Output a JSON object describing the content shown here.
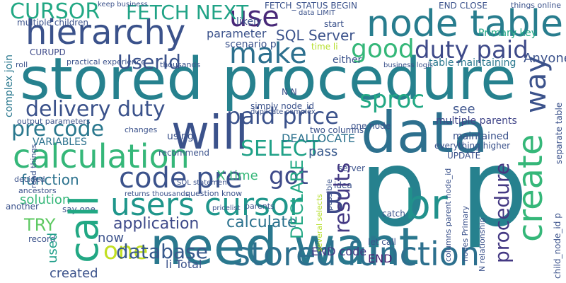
{
  "words": [
    {
      "text": "stored procedure",
      "color": "#26818e"
    },
    {
      "text": "p p",
      "color": "#26818e"
    },
    {
      "text": "need want",
      "color": "#2a788e"
    },
    {
      "text": "data",
      "color": "#2d708e"
    },
    {
      "text": "will",
      "color": "#3b528b"
    },
    {
      "text": "hierarchy",
      "color": "#3b528b"
    },
    {
      "text": "node table",
      "color": "#287d8e"
    },
    {
      "text": "calculation",
      "color": "#35b779"
    },
    {
      "text": "users cursor",
      "color": "#1f968b"
    },
    {
      "text": "stored function",
      "color": "#2d708e"
    },
    {
      "text": "code pre",
      "color": "#3b528b"
    },
    {
      "text": "make",
      "color": "#2d708e"
    },
    {
      "text": "good",
      "color": "#35b779"
    },
    {
      "text": "duty paid",
      "color": "#3e4a89"
    },
    {
      "text": "sproc",
      "color": "#22a884"
    },
    {
      "text": "paid price",
      "color": "#3b528b"
    },
    {
      "text": "delivery duty",
      "color": "#3b528b"
    },
    {
      "text": "pre code",
      "color": "#2a788e"
    },
    {
      "text": "use",
      "color": "#482878"
    },
    {
      "text": "CURSOR",
      "color": "#22a884"
    },
    {
      "text": "FETCH NEXT",
      "color": "#20a386"
    },
    {
      "text": "call",
      "color": "#22a884"
    },
    {
      "text": "one",
      "color": "#c2df23"
    },
    {
      "text": "B",
      "color": "#3e4a89"
    },
    {
      "text": "br",
      "color": "#21918c"
    },
    {
      "text": "results",
      "color": "#443983"
    },
    {
      "text": "create",
      "color": "#35b779"
    },
    {
      "text": "way",
      "color": "#3b528b"
    },
    {
      "text": "procedure",
      "color": "#443983"
    },
    {
      "text": "got",
      "color": "#3e4a89"
    },
    {
      "text": "SELECT",
      "color": "#1fa187"
    },
    {
      "text": "database",
      "color": "#38598c"
    },
    {
      "text": "UserId",
      "color": "#3b528b"
    },
    {
      "text": "SQL Server",
      "color": "#3b528b"
    },
    {
      "text": "parameter",
      "color": "#3b528b"
    },
    {
      "text": "function",
      "color": "#2c728e"
    },
    {
      "text": "application",
      "color": "#3e4a89"
    },
    {
      "text": "calculate",
      "color": "#2c728e"
    },
    {
      "text": "DECLARE",
      "color": "#22a884"
    },
    {
      "text": "TRY",
      "color": "#5ec962"
    },
    {
      "text": "used",
      "color": "#1f9e89"
    },
    {
      "text": "solution",
      "color": "#35b779"
    },
    {
      "text": "now",
      "color": "#3b528b"
    },
    {
      "text": "created",
      "color": "#3b528b"
    },
    {
      "text": "li Total",
      "color": "#3b528b"
    },
    {
      "text": "END code",
      "color": "#443983"
    },
    {
      "text": "END",
      "color": "#481f70"
    },
    {
      "text": "DEALLOCATE",
      "color": "#2c728e"
    },
    {
      "text": "pass",
      "color": "#38598c"
    },
    {
      "text": "see",
      "color": "#3b528b"
    },
    {
      "text": "maintained",
      "color": "#3b528b"
    },
    {
      "text": "multiple parents",
      "color": "#404588"
    },
    {
      "text": "Primary key",
      "color": "#22a884"
    },
    {
      "text": "Anyone",
      "color": "#3b528b"
    },
    {
      "text": "table maintaining",
      "color": "#2a788e"
    },
    {
      "text": "likely",
      "color": "#3b528b"
    },
    {
      "text": "scenario p",
      "color": "#3b528b"
    },
    {
      "text": "time li",
      "color": "#b5de2b"
    },
    {
      "text": "either",
      "color": "#3b528b"
    },
    {
      "text": "start",
      "color": "#3b528b"
    },
    {
      "text": "multiple children",
      "color": "#3b528b"
    },
    {
      "text": "CURUPD",
      "color": "#3e4a89"
    },
    {
      "text": "VARIABLES",
      "color": "#2c728e"
    },
    {
      "text": "X time",
      "color": "#35b779"
    },
    {
      "text": "using",
      "color": "#3b528b"
    },
    {
      "text": "recommend",
      "color": "#3b528b"
    },
    {
      "text": "complex join",
      "color": "#2a788e"
    },
    {
      "text": "two columns",
      "color": "#3b528b"
    },
    {
      "text": "one node",
      "color": "#3b528b"
    },
    {
      "text": "N N",
      "color": "#3b528b"
    },
    {
      "text": "simply node_id",
      "color": "#3b528b"
    },
    {
      "text": "FETCH_STATUS BEGIN",
      "color": "#3b528b"
    },
    {
      "text": "END CLOSE",
      "color": "#3b528b"
    },
    {
      "text": "data LIMIT",
      "color": "#3b528b"
    },
    {
      "text": "things online",
      "color": "#3b528b"
    },
    {
      "text": "practical experience",
      "color": "#3b528b"
    },
    {
      "text": "thousands",
      "color": "#3b528b"
    },
    {
      "text": "roll",
      "color": "#3b528b"
    },
    {
      "text": "business logic",
      "color": "#3b528b"
    },
    {
      "text": "output parameters",
      "color": "#3b528b"
    },
    {
      "text": "ancestors",
      "color": "#3b528b"
    },
    {
      "text": "another",
      "color": "#3b528b"
    },
    {
      "text": "say one",
      "color": "#3b528b"
    },
    {
      "text": "record",
      "color": "#3b528b"
    },
    {
      "text": "question know",
      "color": "#3b528b"
    },
    {
      "text": "SQL statement",
      "color": "#3b528b"
    },
    {
      "text": "returns thousands",
      "color": "#3b528b"
    },
    {
      "text": "pricelist",
      "color": "#3b528b"
    },
    {
      "text": "idea",
      "color": "#3b528b"
    },
    {
      "text": "server",
      "color": "#3b528b"
    },
    {
      "text": "let call",
      "color": "#3b528b"
    },
    {
      "text": "catch",
      "color": "#3b528b"
    },
    {
      "text": "UPDATE",
      "color": "#3b528b"
    },
    {
      "text": "everything higher",
      "color": "#3b528b"
    },
    {
      "text": "columns parent node_id",
      "color": "#3b528b"
    },
    {
      "text": "nodes Primary",
      "color": "#3b528b"
    },
    {
      "text": "N relationship",
      "color": "#3b528b"
    },
    {
      "text": "child_node_id p",
      "color": "#3b528b"
    },
    {
      "text": "separate table",
      "color": "#3b528b"
    },
    {
      "text": "read things",
      "color": "#3b528b"
    },
    {
      "text": "changes",
      "color": "#3b528b"
    },
    {
      "text": "parents",
      "color": "#3b528b"
    },
    {
      "text": "possible",
      "color": "#3b528b"
    },
    {
      "text": "several selects",
      "color": "#b5de2b"
    },
    {
      "text": "decided",
      "color": "#3b528b"
    },
    {
      "text": "keep business",
      "color": "#3b528b"
    },
    {
      "text": "duplicate complex",
      "color": "#3b528b"
    }
  ]
}
